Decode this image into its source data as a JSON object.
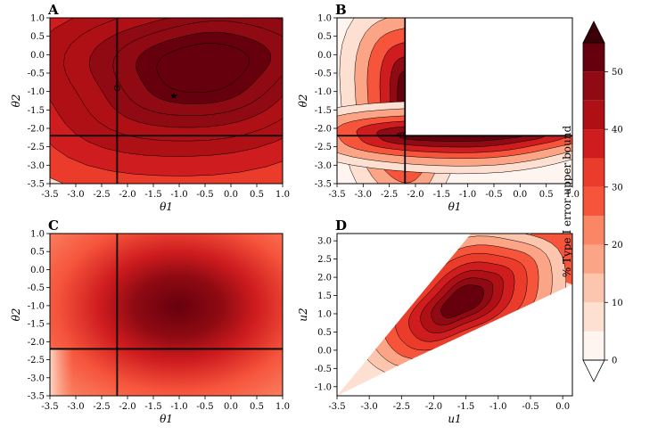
{
  "colors": {
    "levels": [
      "#fff5f0",
      "#fee0d2",
      "#fcc5ad",
      "#fca486",
      "#fb8666",
      "#f6553c",
      "#ea3b2b",
      "#cf1c1f",
      "#ae1016",
      "#8f0a12",
      "#67000d"
    ],
    "line": "#000000",
    "colorbar_border": "#000000"
  },
  "chart_data": [
    {
      "panel": "A",
      "type": "heatmap",
      "style": "filled-contour",
      "xlabel": "θ1",
      "ylabel": "θ2",
      "xlim": [
        -3.5,
        1.0
      ],
      "ylim": [
        -3.5,
        1.0
      ],
      "x_ticks": [
        "-3.5",
        "-3.0",
        "-2.5",
        "-2.0",
        "-1.5",
        "-1.0",
        "-0.5",
        "0.0",
        "0.5",
        "1.0"
      ],
      "y_ticks": [
        "-3.5",
        "-3.0",
        "-2.5",
        "-2.0",
        "-1.5",
        "-1.0",
        "-0.5",
        "0.0",
        "0.5",
        "1.0"
      ],
      "reference_lines": {
        "x": -2.2,
        "y": -2.2
      },
      "markers": [
        {
          "shape": "star",
          "x": -1.1,
          "y": -1.1
        },
        {
          "shape": "circle",
          "x": -2.2,
          "y": -0.9
        }
      ],
      "peak": {
        "x": -1.1,
        "y": -1.1
      },
      "max_value": 53
    },
    {
      "panel": "B",
      "type": "heatmap",
      "style": "filled-contour",
      "xlabel": "θ1",
      "ylabel": "θ2",
      "xlim": [
        -3.5,
        1.0
      ],
      "ylim": [
        -3.5,
        1.0
      ],
      "x_ticks": [
        "-3.5",
        "-3.0",
        "-2.5",
        "-2.0",
        "-1.5",
        "-1.0",
        "-0.5",
        "0.0",
        "0.5",
        "1.0"
      ],
      "y_ticks": [
        "-3.5",
        "-3.0",
        "-2.5",
        "-2.0",
        "-1.5",
        "-1.0",
        "-0.5",
        "0.0",
        "0.5",
        "1.0"
      ],
      "reference_lines": {
        "x": -2.2,
        "y": -2.2
      },
      "blank_region": {
        "x": [
          -2.2,
          1.0
        ],
        "y": [
          -2.2,
          1.0
        ]
      },
      "peak": {
        "x": -2.35,
        "y": -1.3
      },
      "max_value": 53
    },
    {
      "panel": "C",
      "type": "heatmap",
      "style": "smooth",
      "xlabel": "θ1",
      "ylabel": "θ2",
      "xlim": [
        -3.5,
        1.0
      ],
      "ylim": [
        -3.5,
        1.0
      ],
      "x_ticks": [
        "-3.5",
        "-3.0",
        "-2.5",
        "-2.0",
        "-1.5",
        "-1.0",
        "-0.5",
        "0.0",
        "0.5",
        "1.0"
      ],
      "y_ticks": [
        "-3.5",
        "-3.0",
        "-2.5",
        "-2.0",
        "-1.5",
        "-1.0",
        "-0.5",
        "0.0",
        "0.5",
        "1.0"
      ],
      "reference_lines": {
        "x": -2.2,
        "y": -2.2
      },
      "peak": {
        "x": -1.1,
        "y": -1.1
      },
      "max_value": 50
    },
    {
      "panel": "D",
      "type": "heatmap",
      "style": "filled-contour",
      "xlabel": "u1",
      "ylabel": "u2",
      "xlim": [
        -3.5,
        0.15
      ],
      "ylim": [
        -1.25,
        3.2
      ],
      "x_ticks": [
        "-3.5",
        "-3.0",
        "-2.5",
        "-2.0",
        "-1.5",
        "-1.0",
        "-0.5",
        "0.0"
      ],
      "y_ticks": [
        "-1.0",
        "-0.5",
        "0.0",
        "0.5",
        "1.0",
        "1.5",
        "2.0",
        "2.5",
        "3.0"
      ],
      "domain_wedge": [
        [
          -3.5,
          -1.25
        ],
        [
          -1.42,
          3.2
        ],
        [
          0.15,
          3.2
        ],
        [
          0.15,
          1.8
        ],
        [
          -2.35,
          -0.25
        ]
      ],
      "peak": {
        "x": -1.4,
        "y": 1.0
      },
      "max_value": 53
    },
    {
      "panel": "colorbar",
      "type": "colorbar",
      "label": "% Type I error upper bound",
      "levels": [
        0,
        5,
        10,
        15,
        20,
        25,
        30,
        35,
        40,
        45,
        50,
        55
      ],
      "tick_labels": [
        "0",
        "10",
        "20",
        "30",
        "40",
        "50"
      ],
      "extend": "both"
    }
  ]
}
